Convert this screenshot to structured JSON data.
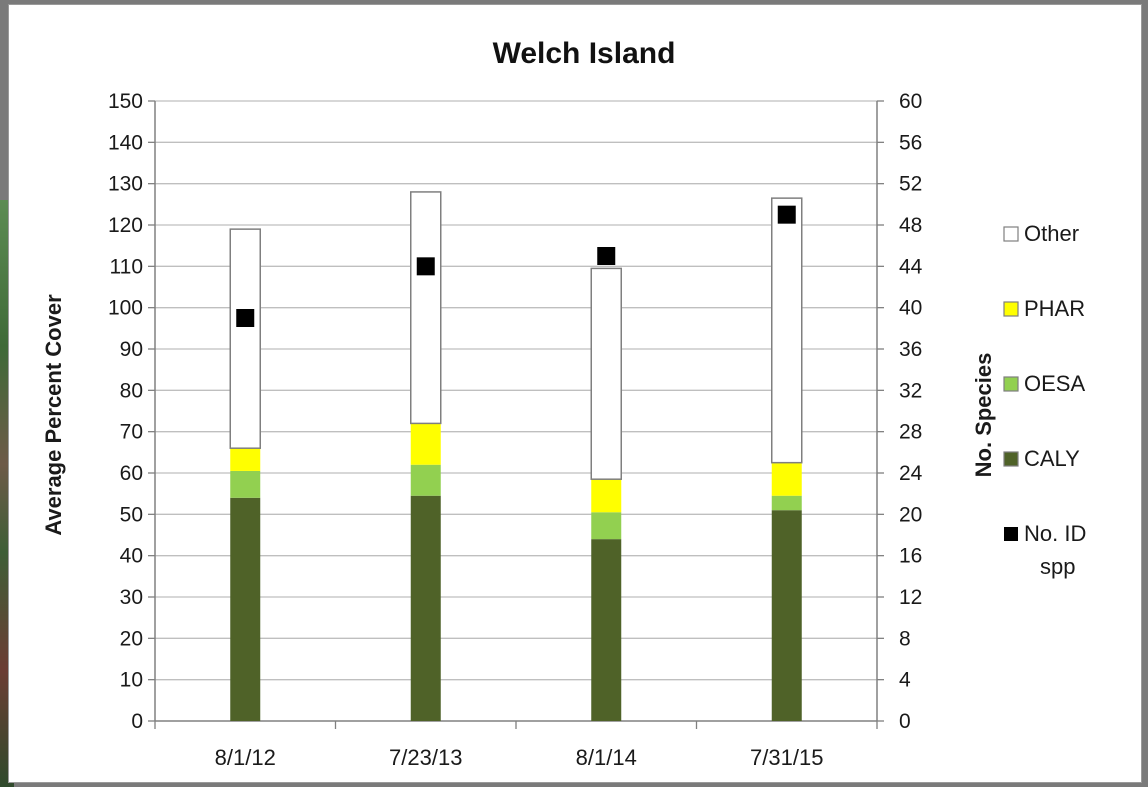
{
  "chart_data": {
    "type": "bar",
    "stacked": true,
    "title": "Welch Island",
    "categories": [
      "8/1/12",
      "7/23/13",
      "8/1/14",
      "7/31/15"
    ],
    "ylabel": "Average Percent Cover",
    "y2label": "No. Species",
    "ylim": [
      0,
      150
    ],
    "y2lim": [
      0,
      60
    ],
    "yticks": [
      0,
      10,
      20,
      30,
      40,
      50,
      60,
      70,
      80,
      90,
      100,
      110,
      120,
      130,
      140,
      150
    ],
    "y2ticks": [
      0,
      4,
      8,
      12,
      16,
      20,
      24,
      28,
      32,
      36,
      40,
      44,
      48,
      52,
      56,
      60
    ],
    "grid": true,
    "legend_position": "right",
    "series": [
      {
        "name": "CALY",
        "color": "#4f6228",
        "values": [
          54,
          54.5,
          44,
          51
        ]
      },
      {
        "name": "OESA",
        "color": "#92d050",
        "values": [
          6.5,
          7.5,
          6.5,
          3.5
        ]
      },
      {
        "name": "PHAR",
        "color": "#ffff00",
        "values": [
          5.5,
          10,
          8,
          8
        ]
      },
      {
        "name": "Other",
        "color": "#ffffff",
        "values": [
          53,
          56,
          51,
          64
        ]
      }
    ],
    "scatter_series": {
      "name": "No. ID spp",
      "color": "#000000",
      "axis": "right",
      "values": [
        39,
        44,
        45,
        49
      ]
    },
    "legend": [
      {
        "label": "Other",
        "color": "#ffffff"
      },
      {
        "label": "PHAR",
        "color": "#ffff00"
      },
      {
        "label": "OESA",
        "color": "#92d050"
      },
      {
        "label": "CALY",
        "color": "#4f6228"
      },
      {
        "label_lines": [
          "No. ID",
          "spp"
        ],
        "color": "#000000"
      }
    ]
  }
}
